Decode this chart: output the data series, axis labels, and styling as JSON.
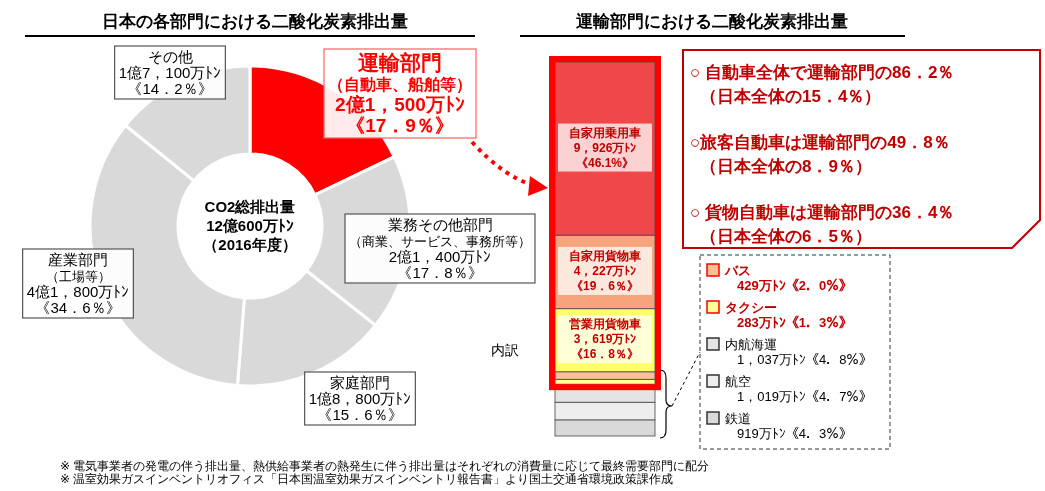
{
  "chart_data": [
    {
      "type": "donut",
      "title": "日本の各部門における二酸化炭素排出量",
      "categories": [
        "運輸部門（自動車、船舶等）",
        "業務その他部門（商業、サービス、事務所等）",
        "家庭部門",
        "産業部門（工場等）",
        "その他"
      ],
      "values": [
        17.9,
        17.8,
        15.6,
        34.6,
        14.2
      ],
      "colors": [
        "#ff0000",
        "#d9d9d9",
        "#d9d9d9",
        "#d9d9d9",
        "#d9d9d9"
      ],
      "value_labels": [
        "《17．9％》",
        "《17．8％》",
        "《15．6％》",
        "《34．6％》",
        "《14．2％》"
      ],
      "annotations": [
        "CO2総排出量",
        "12億600万ﾄﾝ",
        "（2016年度）",
        "2億1，500万ﾄﾝ",
        "2億1，400万ﾄﾝ",
        "1億8，800万ﾄﾝ",
        "4億1，800万ﾄﾝ",
        "1億7，100万ﾄﾝ",
        "※ 電気事業者の発電の伴う排出量、熱供給事業者の熱発生に伴う排出量はそれぞれの消費量に応じて最終需要部門に配分",
        "※ 温室効果ガスインベントリオフィス「日本国温室効果ガスインベントリ報告書」より国土交通省環境政策課作成"
      ]
    },
    {
      "type": "bar",
      "stacked": true,
      "title": "運輸部門における二酸化炭素排出量",
      "ylabel": "内訳",
      "categories": [
        null
      ],
      "legend": "right",
      "series": [
        {
          "name": "鉄道",
          "color": "#d9d9d9",
          "values": [
            4.3
          ]
        },
        {
          "name": "航空",
          "color": "#eeeeee",
          "values": [
            4.7
          ]
        },
        {
          "name": "内航海運",
          "color": "#e4e4e4",
          "values": [
            4.8
          ]
        },
        {
          "name": "タクシー",
          "color": "#ffff99",
          "values": [
            1.3
          ]
        },
        {
          "name": "バス",
          "color": "#fbc08f",
          "values": [
            2.0
          ]
        },
        {
          "name": "営業用貨物車",
          "color": "#ffff66",
          "values": [
            16.8
          ],
          "value_labels": [
            "《16．8％》"
          ]
        },
        {
          "name": "自家用貨物車",
          "color": "#f7a47c",
          "values": [
            19.6
          ],
          "value_labels": [
            "《19．6％》"
          ]
        },
        {
          "name": "自家用乗用車",
          "color": "#f04848",
          "values": [
            46.1
          ],
          "value_labels": [
            "《46.1%》"
          ]
        }
      ],
      "annotations": [
        "○ 自動車全体で運輸部門の86．2％",
        "（日本全体の15．4％）",
        "○旅客自動車は運輸部門の49．8％",
        "（日本全体の8．9％）",
        "○ 貨物自動車は運輸部門の36．4％",
        "（日本全体の6．5％）",
        "919万ﾄﾝ《4．3％》",
        "1，019万ﾄﾝ《4．7％》",
        "1，037万ﾄﾝ《4．8％》",
        "283万ﾄﾝ《1．3％》",
        "429万ﾄﾝ《2．0％》",
        "3，619万ﾄﾝ",
        "4，227万ﾄﾝ",
        "9，926万ﾄﾝ"
      ]
    }
  ]
}
